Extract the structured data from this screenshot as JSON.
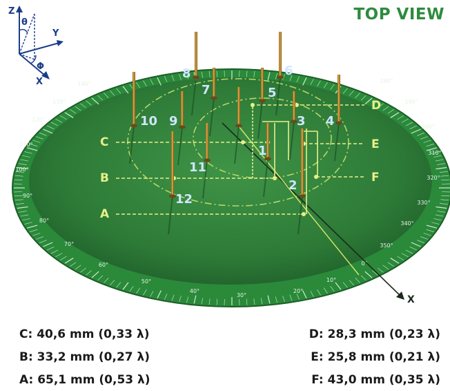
{
  "title": "TOP VIEW",
  "axes": {
    "z": "Z",
    "theta": "θ",
    "y": "Y",
    "phi": "Φ",
    "x": "X",
    "x_arrow": "X"
  },
  "antennas": [
    {
      "id": "1",
      "label": "1"
    },
    {
      "id": "2",
      "label": "2"
    },
    {
      "id": "3",
      "label": "3"
    },
    {
      "id": "4",
      "label": "4"
    },
    {
      "id": "5",
      "label": "5"
    },
    {
      "id": "6",
      "label": "6"
    },
    {
      "id": "7",
      "label": "7"
    },
    {
      "id": "8",
      "label": "8"
    },
    {
      "id": "9",
      "label": "9"
    },
    {
      "id": "10",
      "label": "10"
    },
    {
      "id": "11",
      "label": "11"
    },
    {
      "id": "12",
      "label": "12"
    }
  ],
  "dimension_labels": {
    "A": "A",
    "B": "B",
    "C": "C",
    "D": "D",
    "E": "E",
    "F": "F"
  },
  "legend": {
    "C": "C: 40,6 mm (0,33 λ)",
    "B": "B: 33,2 mm (0,27 λ)",
    "A": "A: 65,1 mm (0,53 λ)",
    "D": "D: 28,3 mm (0,23 λ)",
    "E": "E: 25,8 mm (0,21 λ)",
    "F": "F: 43,0 mm (0,35 λ)"
  },
  "scale_labels": [
    "10°",
    "20°",
    "30°",
    "40°",
    "50°",
    "60°",
    "70°",
    "80°",
    "90°",
    "100°",
    "110°",
    "120°",
    "130°",
    "140°",
    "280°",
    "290°",
    "300°",
    "310°",
    "320°",
    "330°",
    "340°",
    "350°",
    "0°"
  ],
  "colors": {
    "board": "#2f7d3a",
    "ring": "#3a8f42",
    "accent": "#e8f08a",
    "pin": "#c8912f",
    "title": "#2e8b3e"
  }
}
